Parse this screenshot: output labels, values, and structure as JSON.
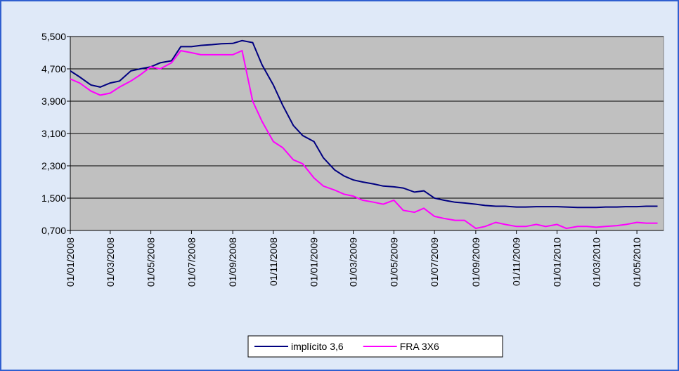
{
  "chart_data": {
    "type": "line",
    "x": [
      "01/01/2008",
      "15/01/2008",
      "01/02/2008",
      "15/02/2008",
      "01/03/2008",
      "15/03/2008",
      "01/04/2008",
      "15/04/2008",
      "01/05/2008",
      "15/05/2008",
      "01/06/2008",
      "15/06/2008",
      "01/07/2008",
      "15/07/2008",
      "01/08/2008",
      "15/08/2008",
      "01/09/2008",
      "15/09/2008",
      "01/10/2008",
      "15/10/2008",
      "01/11/2008",
      "15/11/2008",
      "01/12/2008",
      "15/12/2008",
      "01/01/2009",
      "15/01/2009",
      "01/02/2009",
      "15/02/2009",
      "01/03/2009",
      "15/03/2009",
      "01/04/2009",
      "15/04/2009",
      "01/05/2009",
      "15/05/2009",
      "01/06/2009",
      "15/06/2009",
      "01/07/2009",
      "15/07/2009",
      "01/08/2009",
      "15/08/2009",
      "01/09/2009",
      "15/09/2009",
      "01/10/2009",
      "15/10/2009",
      "01/11/2009",
      "15/11/2009",
      "01/12/2009",
      "15/12/2009",
      "01/01/2010",
      "15/01/2010",
      "01/02/2010",
      "15/02/2010",
      "01/03/2010",
      "15/03/2010",
      "01/04/2010",
      "15/04/2010",
      "01/05/2010",
      "15/05/2010",
      "01/06/2010"
    ],
    "series": [
      {
        "name": "implícito 3,6",
        "color": "#000080",
        "values": [
          4650,
          4500,
          4300,
          4250,
          4350,
          4400,
          4650,
          4700,
          4750,
          4850,
          4900,
          5250,
          5250,
          5280,
          5300,
          5320,
          5330,
          5400,
          5350,
          4800,
          4300,
          3800,
          3300,
          3050,
          2900,
          2500,
          2200,
          2050,
          1950,
          1900,
          1850,
          1800,
          1780,
          1750,
          1650,
          1680,
          1500,
          1450,
          1400,
          1380,
          1350,
          1320,
          1300,
          1300,
          1280,
          1280,
          1290,
          1290,
          1290,
          1280,
          1270,
          1270,
          1270,
          1280,
          1280,
          1290,
          1290,
          1300,
          1300
        ]
      },
      {
        "name": "FRA 3X6",
        "color": "#ff00ff",
        "values": [
          4450,
          4350,
          4150,
          4050,
          4100,
          4250,
          4400,
          4550,
          4750,
          4700,
          4850,
          5150,
          5100,
          5050,
          5050,
          5050,
          5050,
          5150,
          3900,
          3400,
          2900,
          2750,
          2450,
          2350,
          2000,
          1800,
          1700,
          1600,
          1550,
          1450,
          1400,
          1350,
          1450,
          1200,
          1150,
          1250,
          1050,
          1000,
          950,
          950,
          750,
          800,
          900,
          850,
          800,
          800,
          850,
          800,
          850,
          750,
          800,
          800,
          780,
          800,
          820,
          850,
          900,
          880,
          880
        ]
      }
    ],
    "xlim": [
      "01/01/2008",
      "10/06/2010"
    ],
    "xticks": [
      "01/01/2008",
      "01/03/2008",
      "01/05/2008",
      "01/07/2008",
      "01/09/2008",
      "01/11/2008",
      "01/01/2009",
      "01/03/2009",
      "01/05/2009",
      "01/07/2009",
      "01/09/2009",
      "01/11/2009",
      "01/01/2010",
      "01/03/2010",
      "01/05/2010"
    ],
    "ylim": [
      700,
      5500
    ],
    "yticks": [
      {
        "value": 700,
        "label": "0,700"
      },
      {
        "value": 1500,
        "label": "1,500"
      },
      {
        "value": 2300,
        "label": "2,300"
      },
      {
        "value": 3100,
        "label": "3,100"
      },
      {
        "value": 3900,
        "label": "3,900"
      },
      {
        "value": 4700,
        "label": "4,700"
      },
      {
        "value": 5500,
        "label": "5,500"
      }
    ],
    "grid": true,
    "legend": "bottom"
  }
}
